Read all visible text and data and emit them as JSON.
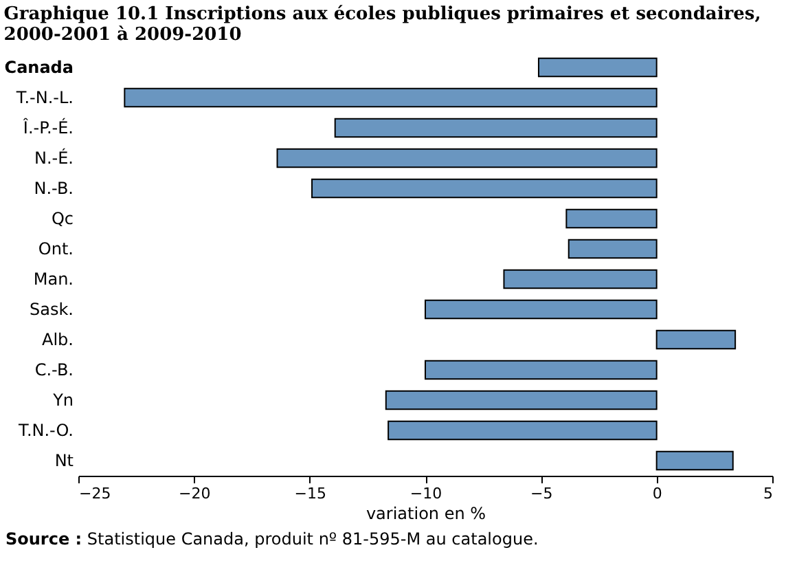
{
  "chart_data": {
    "type": "bar",
    "orientation": "horizontal",
    "title": "Graphique 10.1  Inscriptions aux écoles publiques primaires et secondaires, 2000-2001 à 2009-2010",
    "categories": [
      "Canada",
      "T.-N.-L.",
      "Î.-P.-É.",
      "N.-É.",
      "N.-B.",
      "Qc",
      "Ont.",
      "Man.",
      "Sask.",
      "Alb.",
      "C.-B.",
      "Yn",
      "T.N.-O.",
      "Nt"
    ],
    "values": [
      -5.1,
      -23.0,
      -13.9,
      -16.4,
      -14.9,
      -3.9,
      -3.8,
      -6.6,
      -10.0,
      3.4,
      -10.0,
      -11.7,
      -11.6,
      3.3
    ],
    "color": "#6a96c0",
    "xlabel": "variation en %",
    "xlim": [
      -25,
      5
    ],
    "xticks": [
      -25,
      -20,
      -15,
      -10,
      -5,
      0,
      5
    ],
    "grid": false,
    "annotations": [
      "Source : Statistique Canada, produit nº 81-595-M au catalogue."
    ]
  }
}
